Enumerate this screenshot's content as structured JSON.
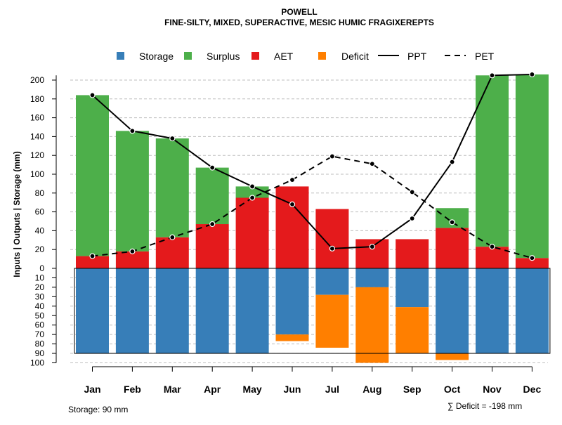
{
  "chart_data": {
    "type": "bar",
    "title": "POWELL",
    "subtitle": "FINE-SILTY, MIXED, SUPERACTIVE, MESIC HUMIC FRAGIXEREPTS",
    "ylabel": "Inputs | Outputs | Storage    (mm)",
    "upper_ylim": [
      0,
      200
    ],
    "upper_ticks": [
      "0",
      "20",
      "40",
      "60",
      "80",
      "100",
      "120",
      "140",
      "160",
      "180",
      "200"
    ],
    "lower_ylim": [
      0,
      100
    ],
    "lower_ticks": [
      "10",
      "20",
      "30",
      "40",
      "50",
      "60",
      "70",
      "80",
      "90",
      "100"
    ],
    "categories": [
      "Jan",
      "Feb",
      "Mar",
      "Apr",
      "May",
      "Jun",
      "Jul",
      "Aug",
      "Sep",
      "Oct",
      "Nov",
      "Dec"
    ],
    "series": [
      {
        "name": "AET",
        "values": [
          13,
          18,
          33,
          47,
          75,
          87,
          63,
          31,
          31,
          43,
          23,
          11
        ]
      },
      {
        "name": "Surplus",
        "values": [
          171,
          128,
          105,
          60,
          12,
          0,
          0,
          0,
          0,
          21,
          182,
          195
        ]
      },
      {
        "name": "Storage",
        "values": [
          90,
          90,
          90,
          90,
          90,
          70,
          28,
          20,
          41,
          90,
          90,
          90
        ]
      },
      {
        "name": "Deficit",
        "values": [
          0,
          0,
          0,
          0,
          0,
          7,
          56,
          80,
          49,
          7,
          0,
          0
        ]
      },
      {
        "name": "PPT",
        "values": [
          184,
          146,
          138,
          107,
          87,
          68,
          21,
          23,
          53,
          113,
          205,
          206
        ]
      },
      {
        "name": "PET",
        "values": [
          13,
          18,
          33,
          47,
          75,
          94,
          119,
          111,
          81,
          49,
          23,
          11
        ]
      }
    ],
    "storage_capacity": 90,
    "legend": [
      {
        "label": "Storage",
        "kind": "box",
        "color": "#377eb8"
      },
      {
        "label": "Surplus",
        "kind": "box",
        "color": "#4daf4a"
      },
      {
        "label": "AET",
        "kind": "box",
        "color": "#e41a1c"
      },
      {
        "label": "Deficit",
        "kind": "box",
        "color": "#ff7f00"
      },
      {
        "label": "PPT",
        "kind": "solid",
        "color": "#000000"
      },
      {
        "label": "PET",
        "kind": "dashed",
        "color": "#000000"
      }
    ],
    "colors": {
      "storage": "#377eb8",
      "surplus": "#4daf4a",
      "aet": "#e41a1c",
      "deficit": "#ff7f00",
      "line": "#000000",
      "grid": "#bebebe"
    },
    "storage_note": "Storage: 90 mm",
    "deficit_note": "∑ Deficit = -198 mm"
  }
}
